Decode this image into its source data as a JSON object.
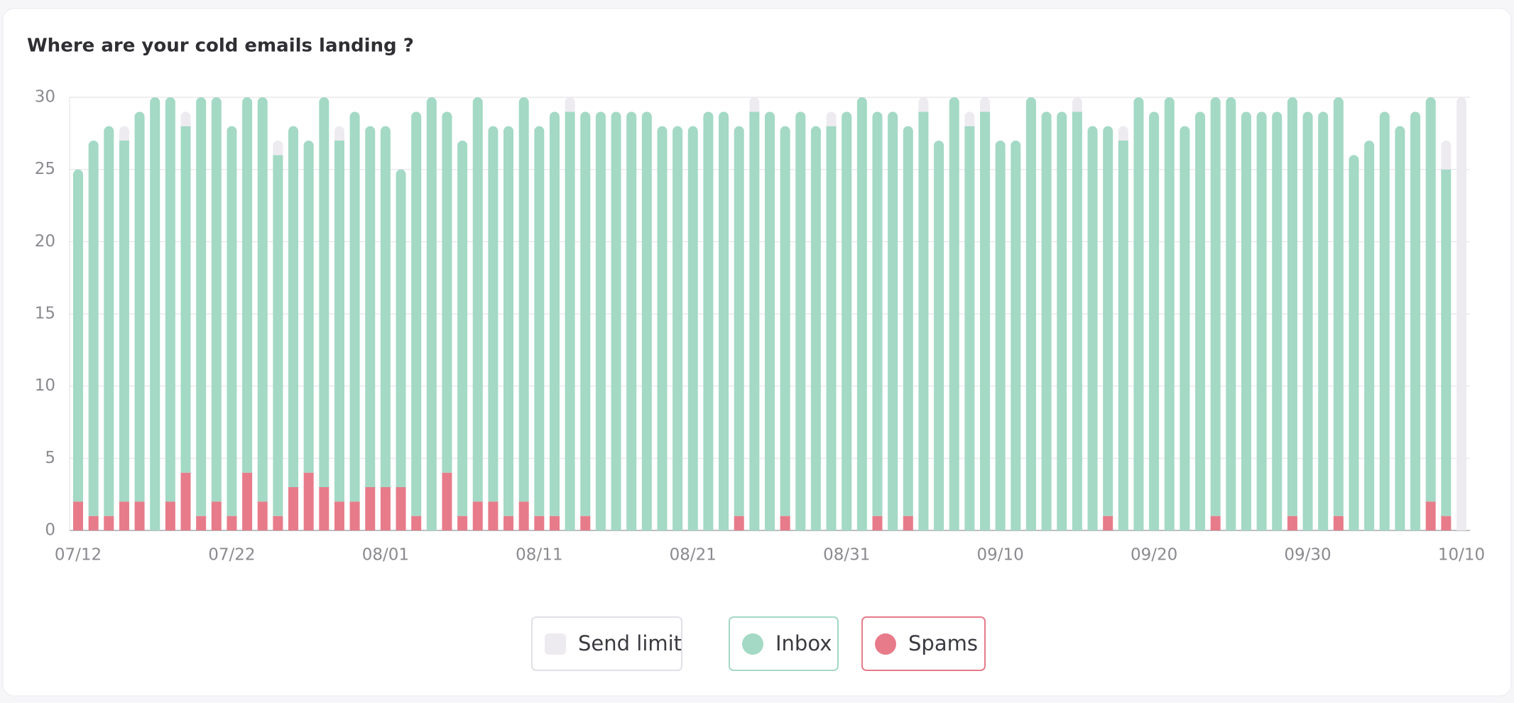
{
  "chart_data": {
    "type": "stacked_bar",
    "title": "Where are your cold emails landing ?",
    "categories": [
      "07/12",
      null,
      null,
      null,
      null,
      null,
      null,
      null,
      null,
      null,
      "07/22",
      null,
      null,
      null,
      null,
      null,
      null,
      null,
      null,
      null,
      "08/01",
      null,
      null,
      null,
      null,
      null,
      null,
      null,
      null,
      null,
      "08/11",
      null,
      null,
      null,
      null,
      null,
      null,
      null,
      null,
      null,
      "08/21",
      null,
      null,
      null,
      null,
      null,
      null,
      null,
      null,
      null,
      "08/31",
      null,
      null,
      null,
      null,
      null,
      null,
      null,
      null,
      null,
      "09/10",
      null,
      null,
      null,
      null,
      null,
      null,
      null,
      null,
      null,
      "09/20",
      null,
      null,
      null,
      null,
      null,
      null,
      null,
      null,
      null,
      "09/30",
      null,
      null,
      null,
      null,
      null,
      null,
      null,
      null,
      null,
      "10/10"
    ],
    "series": [
      {
        "name": "Spams",
        "color": "#e77b8a",
        "values": [
          2,
          1,
          1,
          2,
          2,
          0,
          2,
          4,
          1,
          2,
          1,
          4,
          2,
          1,
          3,
          4,
          3,
          2,
          2,
          3,
          3,
          3,
          1,
          0,
          4,
          1,
          2,
          2,
          1,
          2,
          1,
          1,
          0,
          1,
          0,
          0,
          0,
          0,
          0,
          0,
          0,
          0,
          0,
          1,
          0,
          0,
          1,
          0,
          0,
          0,
          0,
          0,
          1,
          0,
          1,
          0,
          0,
          0,
          0,
          0,
          0,
          0,
          0,
          0,
          0,
          0,
          0,
          1,
          0,
          0,
          0,
          0,
          0,
          0,
          1,
          0,
          0,
          0,
          0,
          1,
          0,
          0,
          1,
          0,
          0,
          0,
          0,
          0,
          2,
          1,
          0
        ]
      },
      {
        "name": "Inbox",
        "color": "#a3d9c5",
        "values": [
          23,
          26,
          27,
          25,
          27,
          30,
          28,
          24,
          29,
          28,
          27,
          26,
          28,
          25,
          25,
          23,
          27,
          25,
          27,
          25,
          25,
          22,
          28,
          30,
          25,
          26,
          28,
          26,
          27,
          28,
          27,
          28,
          29,
          28,
          29,
          29,
          29,
          29,
          28,
          28,
          28,
          29,
          29,
          27,
          29,
          29,
          27,
          29,
          28,
          28,
          29,
          30,
          28,
          29,
          27,
          29,
          27,
          30,
          28,
          29,
          27,
          27,
          30,
          29,
          29,
          29,
          28,
          27,
          27,
          30,
          29,
          30,
          28,
          29,
          29,
          30,
          29,
          29,
          29,
          29,
          29,
          29,
          29,
          26,
          27,
          29,
          28,
          29,
          28,
          24,
          0
        ]
      },
      {
        "name": "Send limit",
        "color": "#eeebf0",
        "values": [
          0,
          0,
          0,
          1,
          0,
          0,
          0,
          1,
          0,
          0,
          0,
          0,
          0,
          1,
          0,
          0,
          0,
          1,
          0,
          0,
          0,
          0,
          0,
          0,
          0,
          0,
          0,
          0,
          0,
          0,
          0,
          0,
          1,
          0,
          0,
          0,
          0,
          0,
          0,
          0,
          0,
          0,
          0,
          0,
          1,
          0,
          0,
          0,
          0,
          1,
          0,
          0,
          0,
          0,
          0,
          1,
          0,
          0,
          1,
          1,
          0,
          0,
          0,
          0,
          0,
          1,
          0,
          0,
          1,
          0,
          0,
          0,
          0,
          0,
          0,
          0,
          0,
          0,
          0,
          0,
          0,
          0,
          0,
          0,
          0,
          0,
          0,
          0,
          0,
          2,
          30
        ]
      }
    ],
    "legend_order": [
      "Send limit",
      "Inbox",
      "Spams"
    ],
    "ylim": [
      0,
      30
    ],
    "yticks": [
      0,
      5,
      10,
      15,
      20,
      25,
      30
    ],
    "grid": true
  }
}
